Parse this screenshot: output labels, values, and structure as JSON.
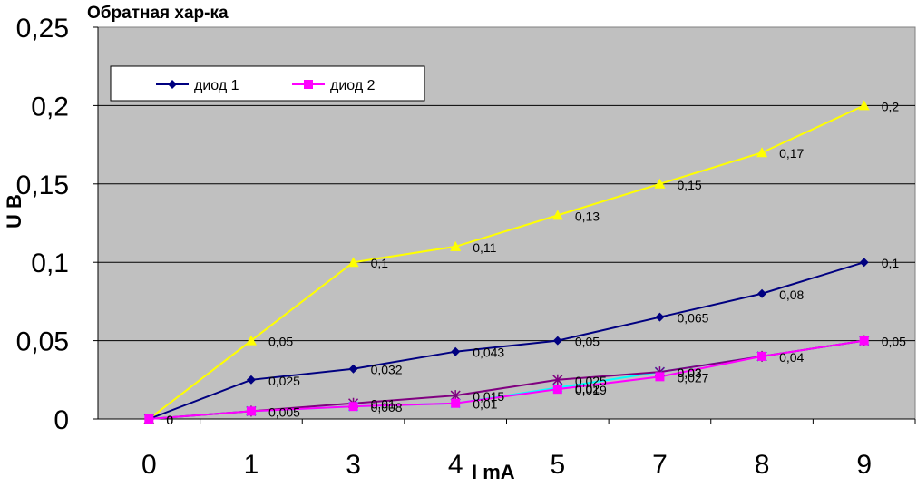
{
  "chart_data": {
    "type": "line",
    "title": "Обратная хар-ка",
    "xlabel": "I mA",
    "ylabel": "U B",
    "categories": [
      "0",
      "1",
      "3",
      "4",
      "5",
      "7",
      "8",
      "9"
    ],
    "ylim": [
      0,
      0.25
    ],
    "yticks": [
      "0",
      "0,05",
      "0,1",
      "0,15",
      "0,2",
      "0,25"
    ],
    "ytick_values": [
      0,
      0.05,
      0.1,
      0.15,
      0.2,
      0.25
    ],
    "grid": true,
    "plot_background": "#c0c0c0",
    "legend_position": "top-left",
    "series": [
      {
        "name": "",
        "color": "#ffff00",
        "marker": "triangle",
        "values": [
          0,
          0.05,
          0.1,
          0.11,
          0.13,
          0.15,
          0.17,
          0.2
        ],
        "labels": [
          "0",
          "0,05",
          "0,1",
          "0,11",
          "0,13",
          "0,15",
          "0,17",
          "0,2"
        ]
      },
      {
        "name": "диод 1",
        "color": "#000080",
        "marker": "diamond",
        "values": [
          0,
          0.025,
          0.032,
          0.043,
          0.05,
          0.065,
          0.08,
          0.1
        ],
        "labels": [
          "0",
          "0,025",
          "0,032",
          "0,043",
          "0,05",
          "0,065",
          "0,08",
          "0,1"
        ]
      },
      {
        "name": "",
        "color": "#00ffff",
        "marker": "x",
        "values": [
          0,
          0.005,
          0.008,
          0.01,
          0.02,
          0.03,
          0.04,
          0.05
        ],
        "labels": [
          "",
          "",
          "",
          "",
          "0,02",
          "0,03",
          "",
          ""
        ]
      },
      {
        "name": "",
        "color": "#800080",
        "marker": "star",
        "values": [
          0,
          0.005,
          0.01,
          0.015,
          0.025,
          0.03,
          0.04,
          0.05
        ],
        "labels": [
          "",
          "",
          "0,01",
          "0,015",
          "0,025",
          "0,03",
          "",
          ""
        ]
      },
      {
        "name": "диод 2",
        "color": "#ff00ff",
        "marker": "square",
        "values": [
          0,
          0.005,
          0.008,
          0.01,
          0.019,
          0.027,
          0.04,
          0.05
        ],
        "labels": [
          "",
          "0,005",
          "0,008",
          "0,01",
          "0,019",
          "0,027",
          "0,04",
          "0,05"
        ]
      }
    ]
  }
}
